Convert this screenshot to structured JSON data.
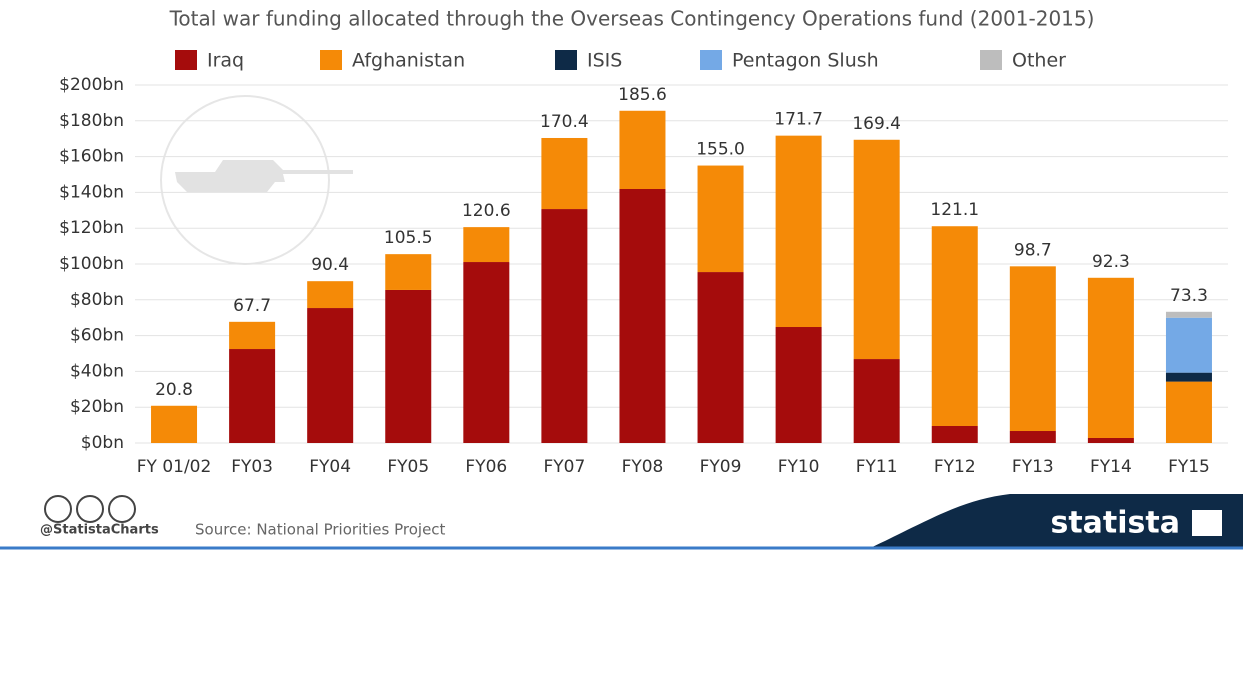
{
  "chart_data": {
    "type": "bar",
    "stacked": true,
    "title": "Total war funding allocated through the Overseas Contingency Operations fund (2001-2015)",
    "categories": [
      "FY 01/02",
      "FY03",
      "FY04",
      "FY05",
      "FY06",
      "FY07",
      "FY08",
      "FY09",
      "FY10",
      "FY11",
      "FY12",
      "FY13",
      "FY14",
      "FY15"
    ],
    "series": [
      {
        "name": "Iraq",
        "color": "#a50c0c",
        "values": [
          0,
          52.5,
          75.4,
          85.5,
          101.1,
          130.7,
          141.9,
          95.5,
          64.8,
          46.9,
          9.5,
          6.7,
          2.8,
          0
        ]
      },
      {
        "name": "Afghanistan",
        "color": "#f58a07",
        "values": [
          20.8,
          15.2,
          15.0,
          20.0,
          19.5,
          39.7,
          43.7,
          59.5,
          106.9,
          122.5,
          111.6,
          92.0,
          89.5,
          34.3
        ]
      },
      {
        "name": "ISIS",
        "color": "#0e2a47",
        "values": [
          0,
          0,
          0,
          0,
          0,
          0,
          0,
          0,
          0,
          0,
          0,
          0,
          0,
          5.0
        ]
      },
      {
        "name": "Pentagon Slush",
        "color": "#74a9e6",
        "values": [
          0,
          0,
          0,
          0,
          0,
          0,
          0,
          0,
          0,
          0,
          0,
          0,
          0,
          30.7
        ]
      },
      {
        "name": "Other",
        "color": "#bdbdbd",
        "values": [
          0,
          0,
          0,
          0,
          0,
          0,
          0,
          0,
          0,
          0,
          0,
          0,
          0,
          3.3
        ]
      }
    ],
    "totals": [
      20.8,
      67.7,
      90.4,
      105.5,
      120.6,
      170.4,
      185.6,
      155.0,
      171.7,
      169.4,
      121.1,
      98.7,
      92.3,
      73.3
    ],
    "total_labels": [
      "20.8",
      "67.7",
      "90.4",
      "105.5",
      "120.6",
      "170.4",
      "185.6",
      "155.0",
      "171.7",
      "169.4",
      "121.1",
      "98.7",
      "92.3",
      "73.3"
    ],
    "ylim": [
      0,
      200
    ],
    "yticks": [
      {
        "value": 0,
        "label": "$0bn"
      },
      {
        "value": 20,
        "label": "$20bn"
      },
      {
        "value": 40,
        "label": "$40bn"
      },
      {
        "value": 60,
        "label": "$60bn"
      },
      {
        "value": 80,
        "label": "$80bn"
      },
      {
        "value": 100,
        "label": "$100bn"
      },
      {
        "value": 120,
        "label": "$120bn"
      },
      {
        "value": 140,
        "label": "$140bn"
      },
      {
        "value": 160,
        "label": "$160bn"
      },
      {
        "value": 180,
        "label": "$180bn"
      },
      {
        "value": 200,
        "label": "$200bn"
      }
    ],
    "grid": true,
    "legend": "top",
    "handle": "@StatistaCharts",
    "source": "Source: National Priorities Project",
    "brand": "statista"
  }
}
